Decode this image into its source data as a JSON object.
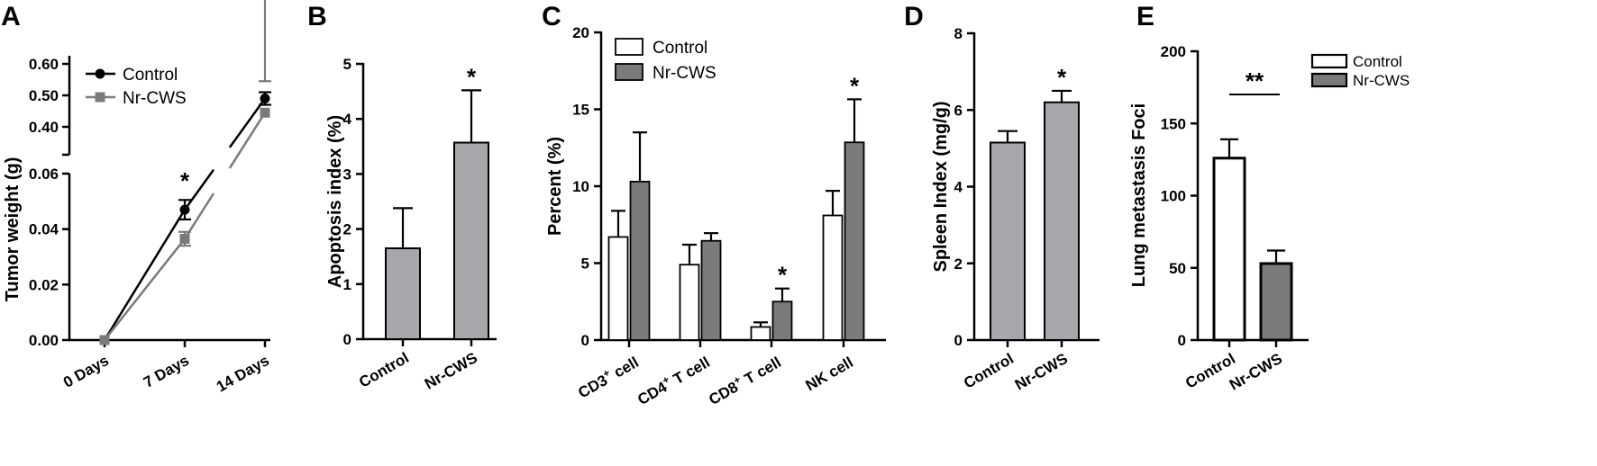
{
  "chart_data": [
    {
      "panel": "A",
      "type": "line",
      "ylabel": "Tumor weight (g)",
      "categories": [
        "0 Days",
        "7 Days",
        "14 Days"
      ],
      "yticks_upper": [
        "0.40",
        "0.50",
        "0.60"
      ],
      "yticks_lower": [
        "0.00",
        "0.02",
        "0.04",
        "0.06"
      ],
      "ylim_lower": [
        0,
        0.06
      ],
      "ylim_upper": [
        0.35,
        0.6
      ],
      "y_broken": true,
      "legend_position": "top-left",
      "series": [
        {
          "name": "Control",
          "color": "#000000",
          "marker": "circle",
          "values": [
            0.0,
            0.047,
            0.49
          ],
          "errors": [
            0.0,
            0.0035,
            0.02
          ]
        },
        {
          "name": "Nr-CWS",
          "color": "#7a7a7a",
          "marker": "square",
          "values": [
            0.0,
            0.0365,
            0.445
          ],
          "errors": [
            0.0,
            0.0025,
            0.1
          ]
        }
      ],
      "annotations": [
        {
          "category": "7 Days",
          "text": "*"
        }
      ]
    },
    {
      "panel": "B",
      "type": "bar",
      "ylabel": "Apoptosis index  (%)",
      "categories": [
        "Control",
        "Nr-CWS"
      ],
      "values": [
        1.65,
        3.57
      ],
      "errors": [
        0.73,
        0.95
      ],
      "ylim": [
        0,
        5
      ],
      "yticks": [
        "0",
        "1",
        "2",
        "3",
        "4",
        "5"
      ],
      "bar_color": "#a7a7ab",
      "annotations": [
        {
          "category": "Nr-CWS",
          "text": "*"
        }
      ]
    },
    {
      "panel": "C",
      "type": "bar",
      "ylabel": "Percent  (%)",
      "ylim": [
        0,
        20
      ],
      "yticks": [
        "0",
        "5",
        "10",
        "15",
        "20"
      ],
      "categories": [
        {
          "pre": "CD3",
          "sup": "+",
          "post": " cell"
        },
        {
          "pre": "CD4",
          "sup": "+",
          "post": " T cell"
        },
        {
          "pre": "CD8",
          "sup": "+",
          "post": " T cell"
        },
        {
          "pre": "NK cell",
          "sup": "",
          "post": ""
        }
      ],
      "legend_position": "top-left",
      "series": [
        {
          "name": "Control",
          "color": "#ffffff",
          "values": [
            6.7,
            4.9,
            0.85,
            8.1
          ],
          "errors": [
            1.7,
            1.3,
            0.3,
            1.6
          ]
        },
        {
          "name": "Nr-CWS",
          "color": "#7b7b7b",
          "values": [
            10.3,
            6.45,
            2.5,
            12.85
          ],
          "errors": [
            3.2,
            0.5,
            0.85,
            2.8
          ]
        }
      ],
      "annotations": [
        {
          "category": 2,
          "series": 1,
          "text": "*"
        },
        {
          "category": 3,
          "series": 1,
          "text": "*"
        }
      ]
    },
    {
      "panel": "D",
      "type": "bar",
      "ylabel": "Spleen Index (mg/g)",
      "categories": [
        "Control",
        "Nr-CWS"
      ],
      "values": [
        5.15,
        6.2
      ],
      "errors": [
        0.3,
        0.3
      ],
      "ylim": [
        0,
        8
      ],
      "yticks": [
        "0",
        "2",
        "4",
        "6",
        "8"
      ],
      "bar_color": "#a7a7ab",
      "annotations": [
        {
          "category": "Nr-CWS",
          "text": "*"
        }
      ]
    },
    {
      "panel": "E",
      "type": "bar",
      "ylabel": "Lung metastasis Foci",
      "categories": [
        "Control",
        "Nr-CWS"
      ],
      "values": [
        126,
        53
      ],
      "errors": [
        13,
        9
      ],
      "ylim": [
        0,
        200
      ],
      "yticks": [
        "0",
        "50",
        "100",
        "150",
        "200"
      ],
      "legend_position": "top-right",
      "series": [
        {
          "name": "Control",
          "color": "#ffffff"
        },
        {
          "name": "Nr-CWS",
          "color": "#7b7b7b"
        }
      ],
      "annotations": [
        {
          "between": [
            "Control",
            "Nr-CWS"
          ],
          "text": "**"
        }
      ]
    }
  ]
}
